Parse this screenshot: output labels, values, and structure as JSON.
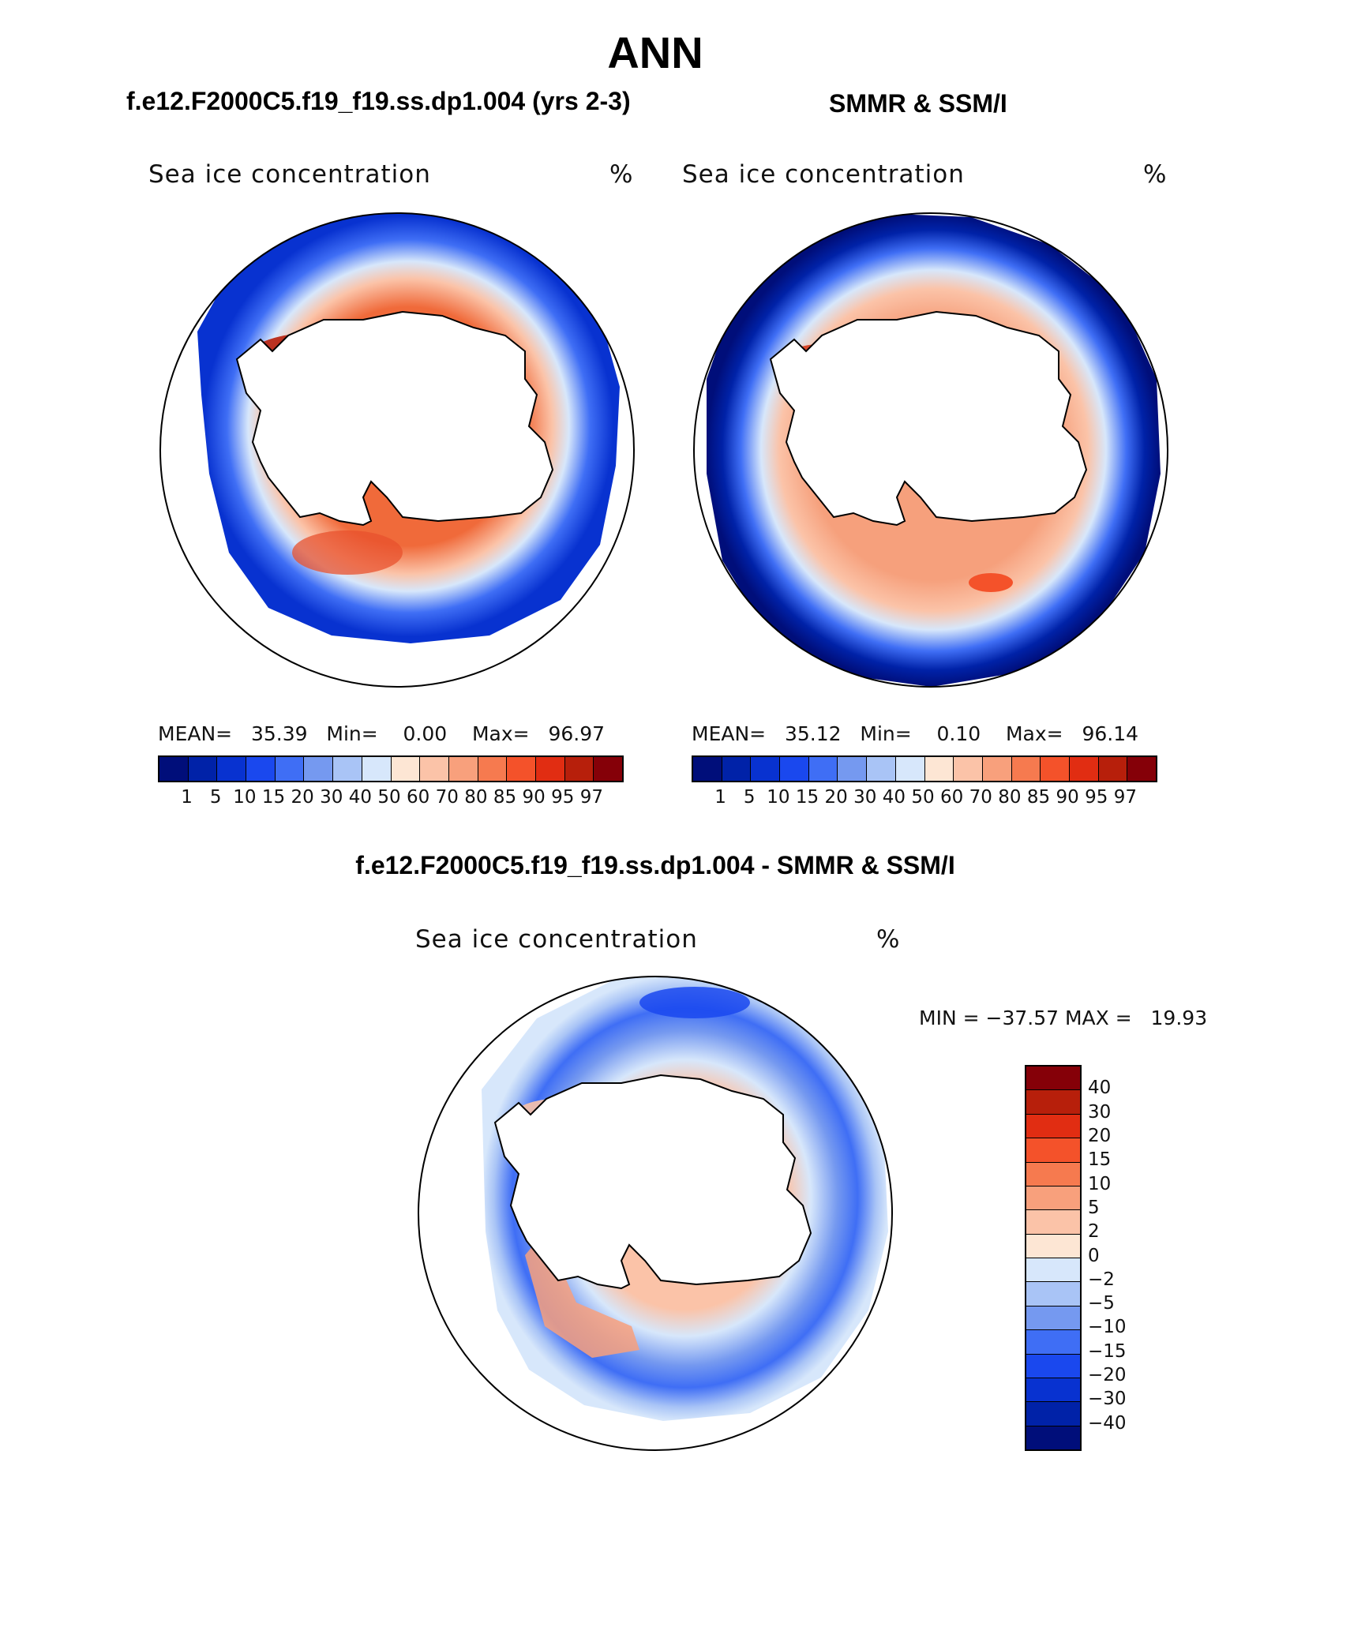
{
  "title": "ANN",
  "panels": {
    "model": {
      "heading": "f.e12.F2000C5.f19_f19.ss.dp1.004 (yrs 2-3)",
      "var_label": "Sea ice concentration",
      "unit": "%",
      "mean_label": "MEAN=",
      "mean_value": "35.39",
      "min_label": "Min=",
      "min_value": "0.00",
      "max_label": "Max=",
      "max_value": "96.97"
    },
    "obs": {
      "heading": "SMMR & SSM/I",
      "var_label": "Sea ice concentration",
      "unit": "%",
      "mean_label": "MEAN=",
      "mean_value": "35.12",
      "min_label": "Min=",
      "min_value": "0.10",
      "max_label": "Max=",
      "max_value": "96.14"
    },
    "diff": {
      "heading": "f.e12.F2000C5.f19_f19.ss.dp1.004 - SMMR & SSM/I",
      "var_label": "Sea ice concentration",
      "unit": "%",
      "min_label": "MIN =",
      "min_value": "−37.57",
      "max_label": "MAX =",
      "max_value": "19.93"
    }
  },
  "colorbar_abs": {
    "labels": [
      "1",
      "5",
      "10",
      "15",
      "20",
      "30",
      "40",
      "50",
      "60",
      "70",
      "80",
      "85",
      "90",
      "95",
      "97"
    ],
    "colors": [
      "#000e7a",
      "#0022a8",
      "#0832d0",
      "#1a48ee",
      "#3f6ef5",
      "#7599f0",
      "#a9c4f6",
      "#d7e7fb",
      "#fde6d4",
      "#fbc3a8",
      "#f8a07c",
      "#f67a4f",
      "#f4522a",
      "#e12d12",
      "#b71f0b",
      "#850008"
    ]
  },
  "colorbar_diff": {
    "labels": [
      "40",
      "30",
      "20",
      "15",
      "10",
      "5",
      "2",
      "0",
      "−2",
      "−5",
      "−10",
      "−15",
      "−20",
      "−30",
      "−40"
    ],
    "colors": [
      "#850008",
      "#b71f0b",
      "#e12d12",
      "#f4522a",
      "#f67a4f",
      "#f8a07c",
      "#fbc3a8",
      "#fde6d4",
      "#d7e7fb",
      "#a9c4f6",
      "#7599f0",
      "#3f6ef5",
      "#1a48ee",
      "#0832d0",
      "#0022a8",
      "#000e7a"
    ]
  },
  "colors": {
    "land": "#ffffff",
    "coast": "#000000",
    "ice_high": "#d5391a",
    "ice_low": "#0a1f9e"
  }
}
